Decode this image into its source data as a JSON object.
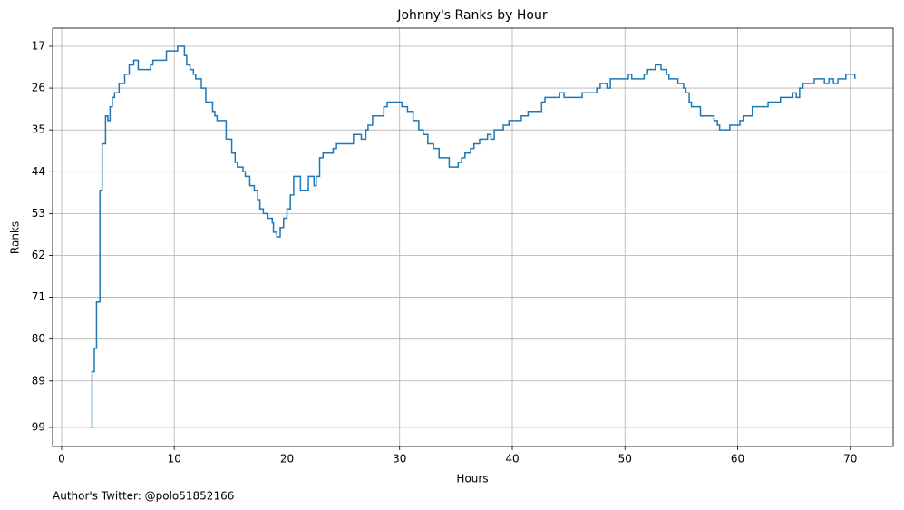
{
  "chart_data": {
    "type": "line",
    "step": "post",
    "title": "Johnny's Ranks by Hour",
    "xlabel": "Hours",
    "ylabel": "Ranks",
    "footnote": "Author's Twitter: @polo51852166",
    "xlim": [
      -0.8,
      73.8
    ],
    "xticks": [
      0,
      10,
      20,
      30,
      40,
      50,
      60,
      70
    ],
    "ylim": [
      103.1,
      13.1
    ],
    "yticks": [
      17,
      26,
      35,
      44,
      53,
      62,
      71,
      80,
      89,
      99
    ],
    "grid": true,
    "x": [
      2.6,
      2.7,
      2.9,
      3.1,
      3.4,
      3.6,
      3.9,
      4.1,
      4.3,
      4.5,
      4.7,
      5.1,
      5.6,
      6.0,
      6.4,
      6.8,
      7.9,
      8.1,
      9.3,
      10.3,
      10.9,
      11.1,
      11.4,
      11.7,
      11.9,
      12.4,
      12.8,
      13.4,
      13.6,
      13.8,
      14.6,
      15.1,
      15.4,
      15.6,
      16.1,
      16.3,
      16.7,
      17.1,
      17.4,
      17.6,
      17.9,
      18.3,
      18.7,
      18.8,
      19.1,
      19.4,
      19.7,
      20.0,
      20.3,
      20.6,
      21.2,
      21.9,
      22.4,
      22.6,
      22.9,
      23.2,
      24.1,
      24.4,
      25.9,
      26.6,
      27.0,
      27.2,
      27.6,
      28.6,
      28.9,
      30.2,
      30.7,
      31.2,
      31.7,
      32.1,
      32.5,
      33.0,
      33.5,
      34.4,
      35.2,
      35.5,
      35.8,
      36.3,
      36.6,
      37.1,
      37.8,
      38.1,
      38.4,
      39.2,
      39.7,
      40.8,
      41.4,
      42.6,
      42.9,
      44.2,
      44.6,
      46.2,
      47.5,
      47.8,
      48.4,
      48.7,
      50.3,
      50.6,
      51.7,
      52.0,
      52.7,
      53.2,
      53.7,
      53.9,
      54.7,
      55.2,
      55.4,
      55.7,
      55.9,
      56.7,
      57.9,
      58.2,
      58.4,
      59.3,
      60.2,
      60.5,
      61.3,
      62.7,
      63.8,
      64.9,
      65.2,
      65.5,
      65.8,
      66.8,
      67.7,
      68.1,
      68.5,
      68.9,
      69.6,
      70.4
    ],
    "series": [
      {
        "name": "Ranks",
        "color": "#1f77b4",
        "values": [
          99,
          87,
          82,
          72,
          48,
          38,
          32,
          33,
          30,
          28,
          27,
          25,
          23,
          21,
          20,
          22,
          21,
          20,
          18,
          17,
          19,
          21,
          22,
          23,
          24,
          26,
          29,
          31,
          32,
          33,
          37,
          40,
          42,
          43,
          44,
          45,
          47,
          48,
          50,
          52,
          53,
          54,
          55,
          57,
          58,
          56,
          54,
          52,
          49,
          45,
          48,
          45,
          47,
          45,
          41,
          40,
          39,
          38,
          36,
          37,
          35,
          34,
          32,
          30,
          29,
          30,
          31,
          33,
          35,
          36,
          38,
          39,
          41,
          43,
          42,
          41,
          40,
          39,
          38,
          37,
          36,
          37,
          35,
          34,
          33,
          32,
          31,
          29,
          28,
          27,
          28,
          27,
          26,
          25,
          26,
          24,
          23,
          24,
          23,
          22,
          21,
          22,
          23,
          24,
          25,
          26,
          27,
          29,
          30,
          32,
          33,
          34,
          35,
          34,
          33,
          32,
          30,
          29,
          28,
          27,
          28,
          26,
          25,
          24,
          25,
          24,
          25,
          24,
          23,
          24
        ]
      }
    ]
  }
}
